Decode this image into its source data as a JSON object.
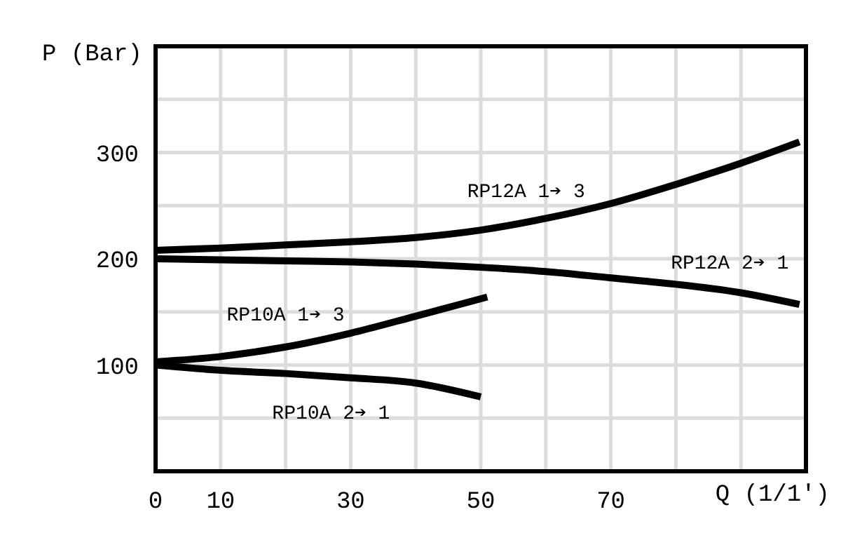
{
  "chart_data": {
    "type": "line",
    "xlabel": "Q (1/1')",
    "ylabel": "P (Bar)",
    "xlim": [
      0,
      100
    ],
    "xticks": [
      0,
      10,
      {
        "value": 20,
        "label": null
      },
      30,
      {
        "value": 40,
        "label": null
      },
      50,
      {
        "value": 60,
        "label": null
      },
      70,
      {
        "value": 80,
        "label": null
      },
      {
        "value": 90,
        "label": null
      }
    ],
    "ylim": [
      0,
      400
    ],
    "yticks": [
      {
        "value": 50,
        "label": null
      },
      100,
      {
        "value": 150,
        "label": null
      },
      200,
      {
        "value": 250,
        "label": null
      },
      300,
      {
        "value": 350,
        "label": null
      }
    ],
    "grid": true,
    "marker": "none",
    "line_style": "solid",
    "series": [
      {
        "name": "RP12A 1➔ 3",
        "color": "#000000",
        "x": [
          0,
          10,
          20,
          30,
          40,
          50,
          60,
          70,
          80,
          90,
          99
        ],
        "values": [
          208,
          210,
          213,
          216,
          220,
          227,
          238,
          252,
          270,
          290,
          310
        ]
      },
      {
        "name": "RP12A 2➔ 1",
        "color": "#000000",
        "x": [
          0,
          10,
          20,
          30,
          40,
          50,
          60,
          70,
          80,
          90,
          99
        ],
        "values": [
          200,
          199,
          198,
          197,
          195,
          192,
          188,
          182,
          176,
          168,
          157
        ]
      },
      {
        "name": "RP10A 1➔ 3",
        "color": "#000000",
        "x": [
          0,
          10,
          20,
          30,
          40,
          51
        ],
        "values": [
          103,
          108,
          117,
          130,
          146,
          164
        ]
      },
      {
        "name": "RP10A 2➔ 1",
        "color": "#000000",
        "x": [
          0,
          10,
          20,
          30,
          40,
          50
        ],
        "values": [
          100,
          95,
          92,
          88,
          83,
          70
        ]
      }
    ]
  }
}
